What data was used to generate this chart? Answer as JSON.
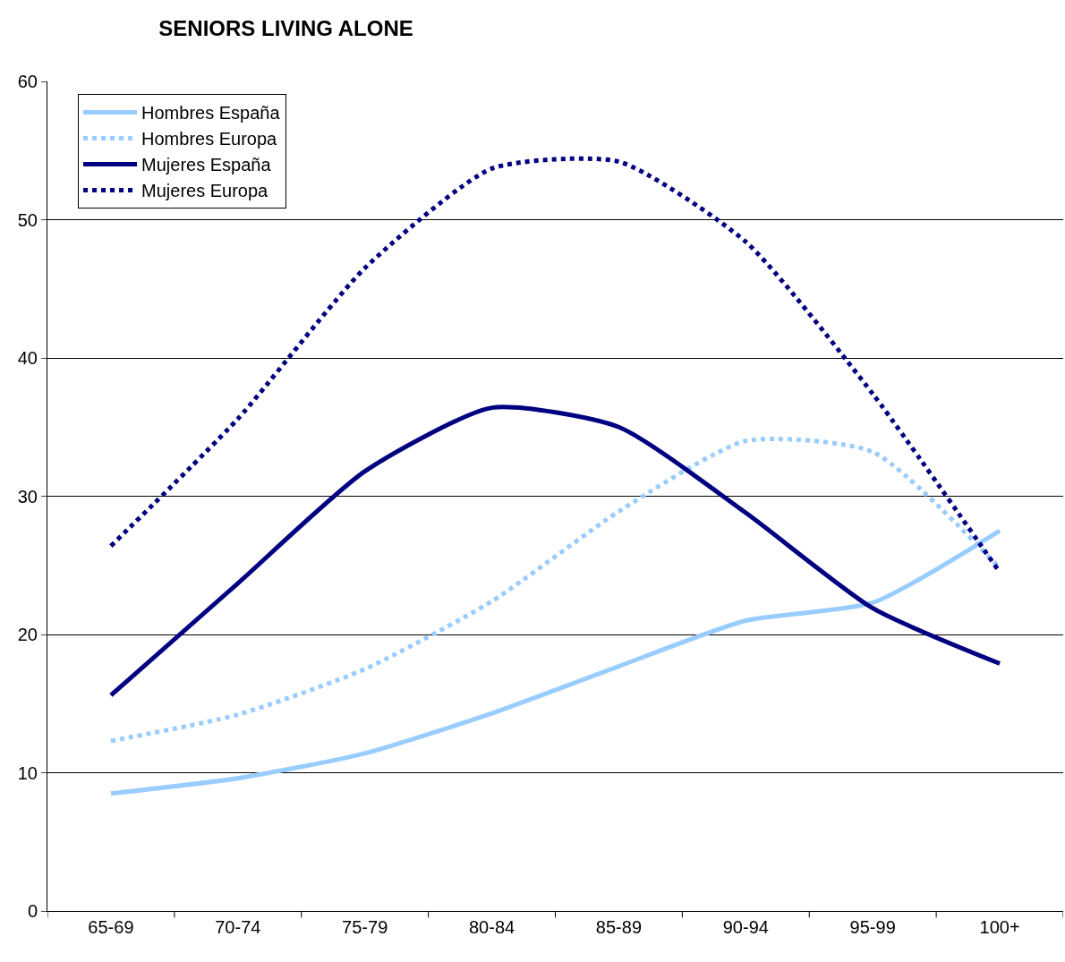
{
  "chart_data": {
    "type": "line",
    "title": "SENIORS LIVING ALONE",
    "categories": [
      "65-69",
      "70-74",
      "75-79",
      "80-84",
      "85-89",
      "90-94",
      "95-99",
      "100+"
    ],
    "series": [
      {
        "name": "Hombres España",
        "color": "#99ccff",
        "line_style": "solid",
        "values": [
          8.5,
          9.6,
          11.4,
          14.3,
          17.7,
          21.0,
          22.3,
          27.5
        ]
      },
      {
        "name": "Hombres Europa",
        "color": "#99ccff",
        "line_style": "dotted",
        "values": [
          12.3,
          14.2,
          17.5,
          22.4,
          28.9,
          34.0,
          33.2,
          24.8
        ]
      },
      {
        "name": "Mujeres España",
        "color": "#000080",
        "line_style": "solid",
        "values": [
          15.6,
          23.7,
          31.8,
          36.4,
          35.0,
          28.8,
          21.9,
          17.9
        ]
      },
      {
        "name": "Mujeres Europa",
        "color": "#000080",
        "line_style": "dotted",
        "values": [
          26.4,
          35.6,
          46.5,
          53.7,
          54.2,
          48.4,
          37.4,
          24.5
        ]
      }
    ],
    "ylim": [
      0,
      60
    ],
    "yticks": [
      0,
      10,
      20,
      30,
      40,
      50,
      60
    ],
    "grid": "y",
    "legend": "top left",
    "marker": "none"
  }
}
